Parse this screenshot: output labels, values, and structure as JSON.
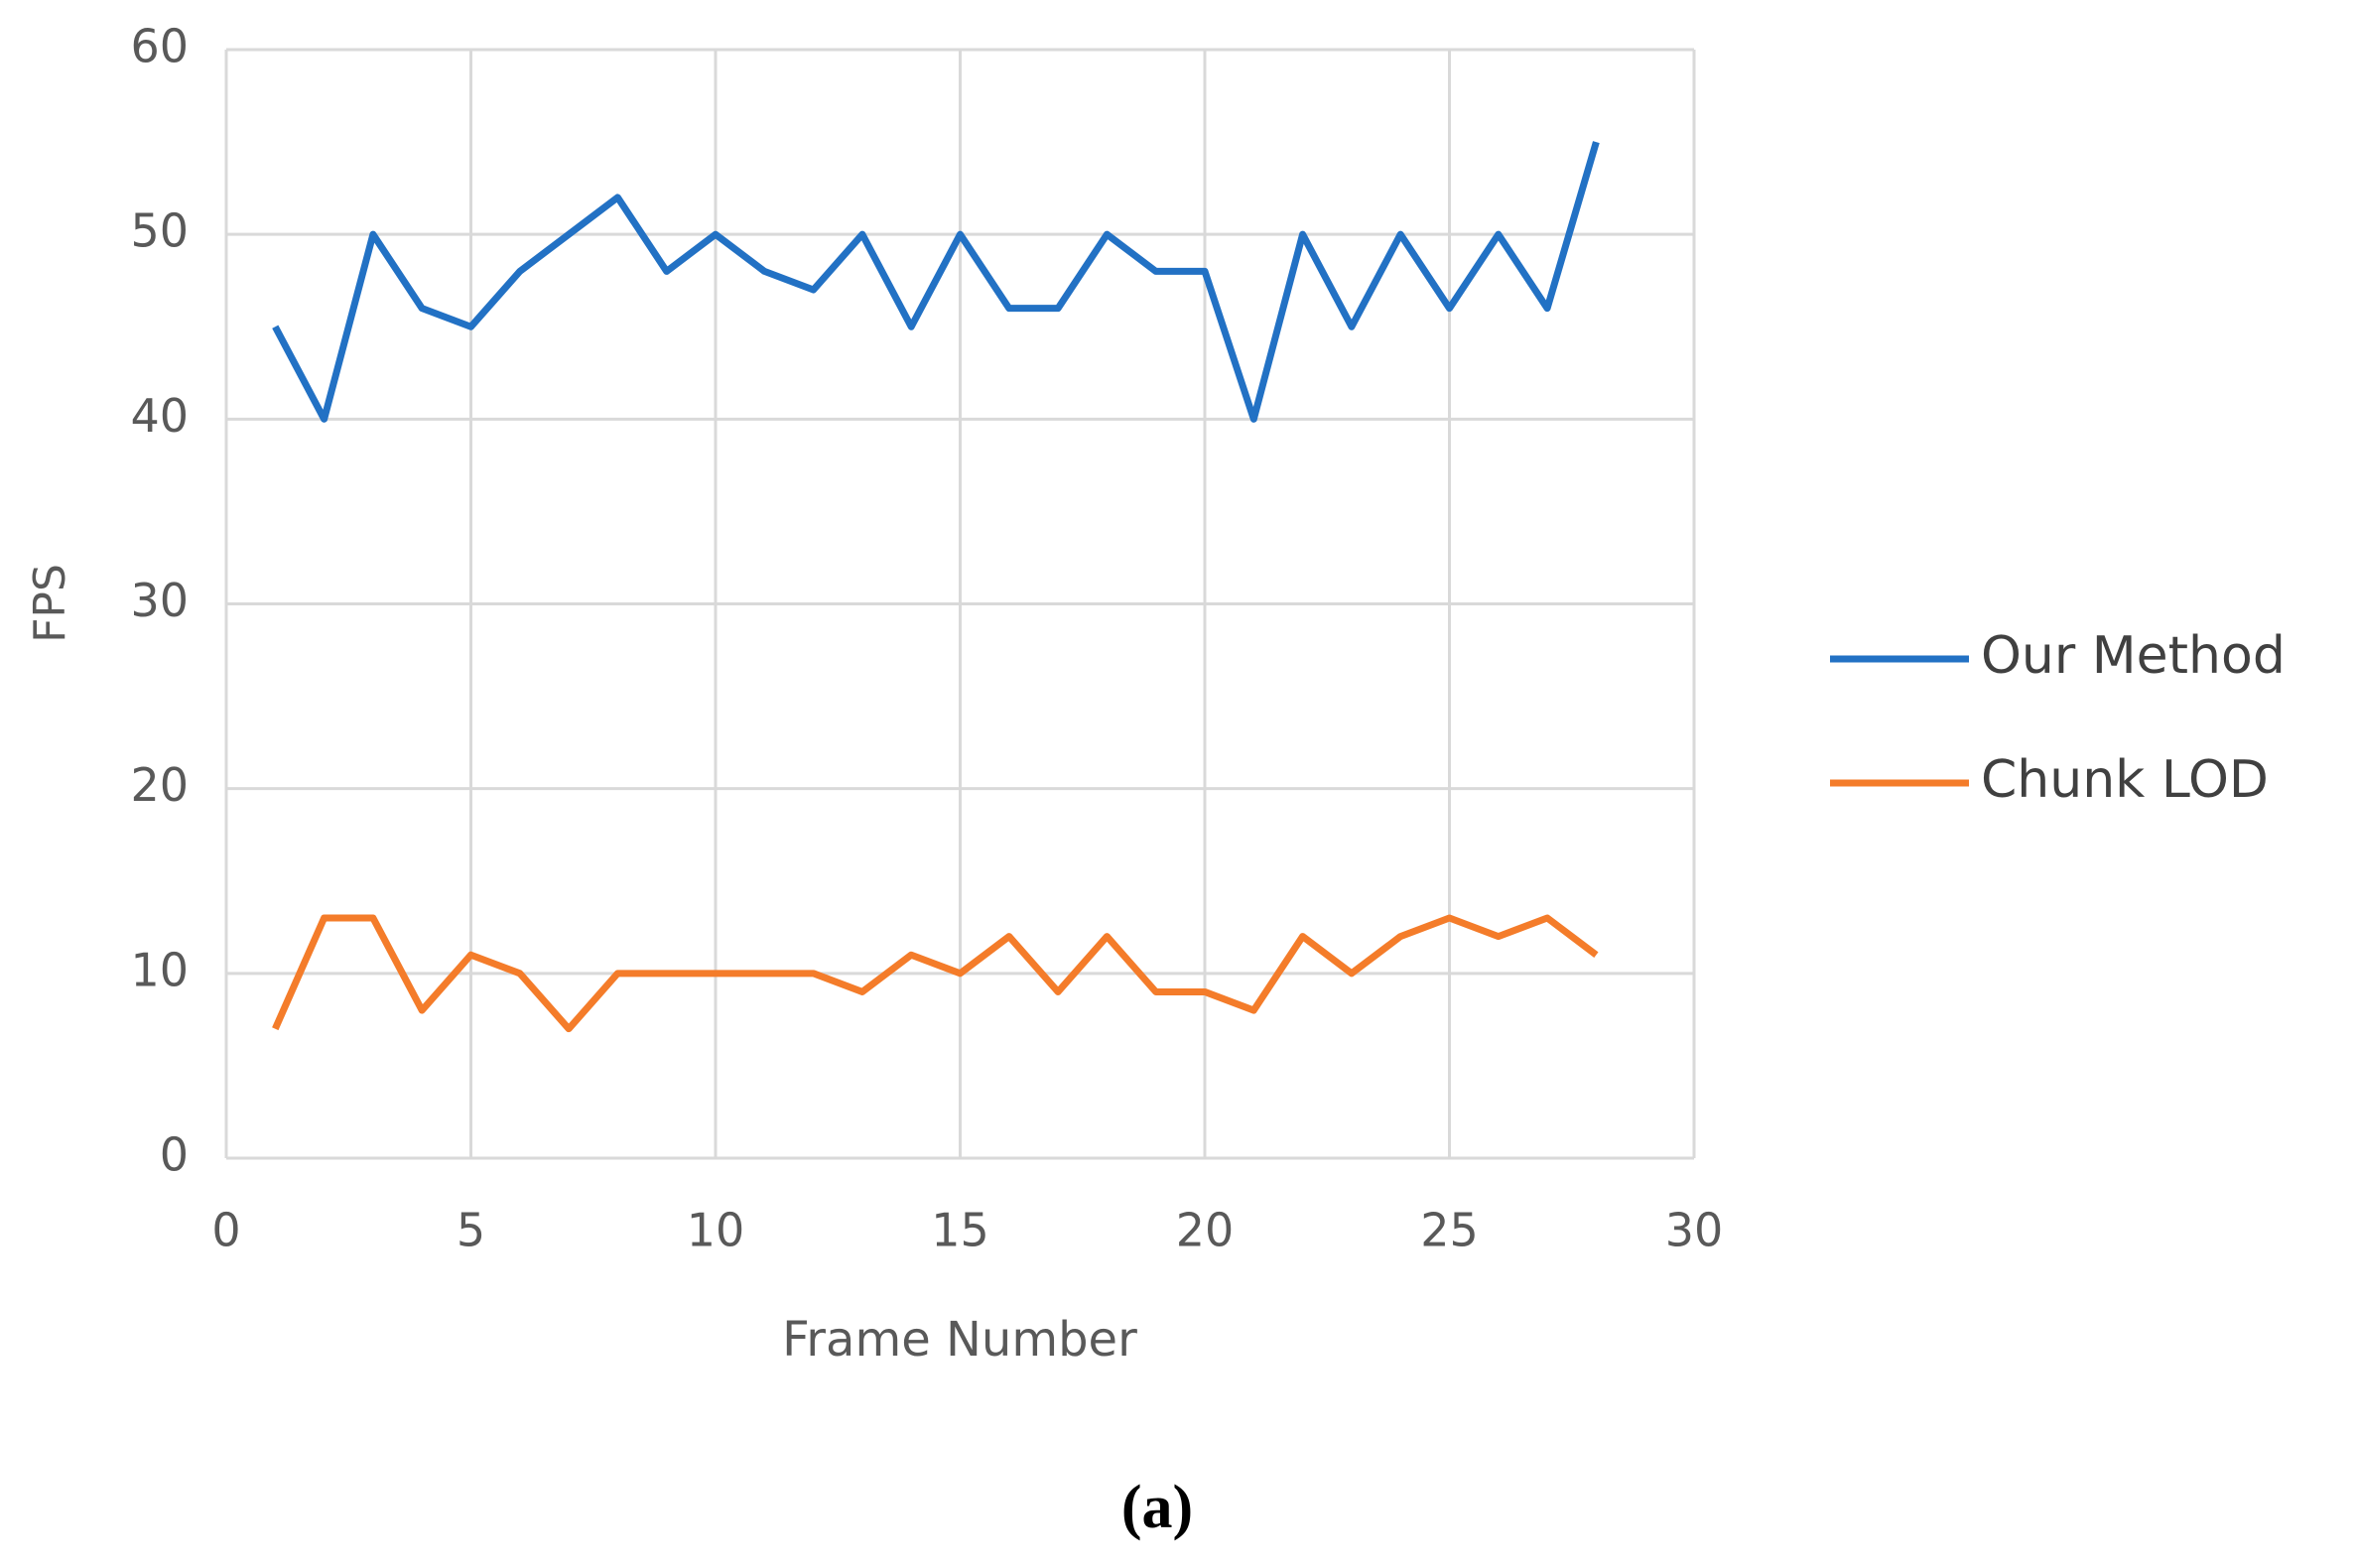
{
  "chart_data": {
    "type": "line",
    "x": [
      1,
      2,
      3,
      4,
      5,
      6,
      7,
      8,
      9,
      10,
      11,
      12,
      13,
      14,
      15,
      16,
      17,
      18,
      19,
      20,
      21,
      22,
      23,
      24,
      25,
      26,
      27,
      28
    ],
    "series": [
      {
        "name": "Our Method",
        "color": "#2271c4",
        "values": [
          45,
          40,
          50,
          46,
          45,
          48,
          50,
          52,
          48,
          50,
          48,
          47,
          50,
          45,
          50,
          46,
          46,
          50,
          48,
          48,
          40,
          50,
          45,
          50,
          46,
          50,
          46,
          55
        ]
      },
      {
        "name": "Chunk LOD",
        "color": "#f47c2a",
        "values": [
          7,
          13,
          13,
          8,
          11,
          10,
          7,
          10,
          10,
          10,
          10,
          10,
          9,
          11,
          10,
          12,
          9,
          12,
          9,
          9,
          8,
          12,
          10,
          12,
          13,
          12,
          13,
          11
        ]
      }
    ],
    "xlabel": "Frame Number",
    "ylabel": "FPS",
    "xlim": [
      0,
      30
    ],
    "xticks": [
      0,
      5,
      10,
      15,
      20,
      25,
      30
    ],
    "ylim": [
      0,
      60
    ],
    "yticks": [
      0,
      10,
      20,
      30,
      40,
      50,
      60
    ],
    "grid": true,
    "legend": "right",
    "caption": "(a)"
  }
}
